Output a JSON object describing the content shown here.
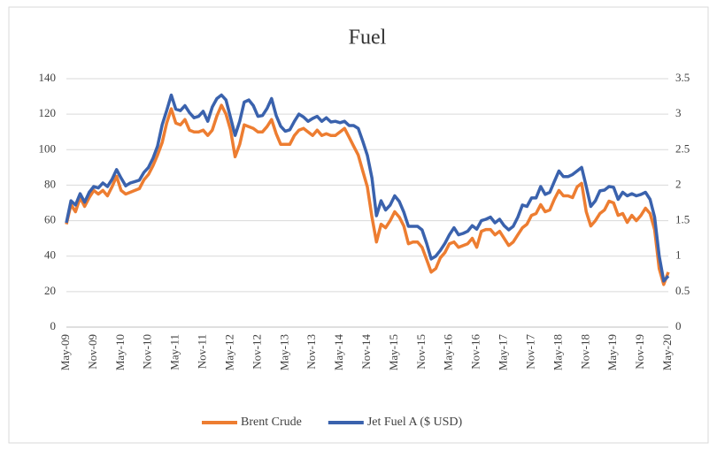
{
  "chart_data": {
    "type": "line",
    "title": "Fuel",
    "categories": [
      "May-09",
      null,
      null,
      null,
      null,
      null,
      "Nov-09",
      null,
      null,
      null,
      null,
      null,
      "May-10",
      null,
      null,
      null,
      null,
      null,
      "Nov-10",
      null,
      null,
      null,
      null,
      null,
      "May-11",
      null,
      null,
      null,
      null,
      null,
      "Nov-11",
      null,
      null,
      null,
      null,
      null,
      "May-12",
      null,
      null,
      null,
      null,
      null,
      "Nov-12",
      null,
      null,
      null,
      null,
      null,
      "May-13",
      null,
      null,
      null,
      null,
      null,
      "Nov-13",
      null,
      null,
      null,
      null,
      null,
      "May-14",
      null,
      null,
      null,
      null,
      null,
      "Nov-14",
      null,
      null,
      null,
      null,
      null,
      "May-15",
      null,
      null,
      null,
      null,
      null,
      "Nov-15",
      null,
      null,
      null,
      null,
      null,
      "May-16",
      null,
      null,
      null,
      null,
      null,
      "Nov-16",
      null,
      null,
      null,
      null,
      null,
      "May-17",
      null,
      null,
      null,
      null,
      null,
      "Nov-17",
      null,
      null,
      null,
      null,
      null,
      "May-18",
      null,
      null,
      null,
      null,
      null,
      "Nov-18",
      null,
      null,
      null,
      null,
      null,
      "May-19",
      null,
      null,
      null,
      null,
      null,
      "Nov-19",
      null,
      null,
      null,
      null,
      null,
      "May-20"
    ],
    "series": [
      {
        "name": "Brent Crude",
        "color": "#ed7d31",
        "values": [
          58,
          69,
          65,
          73,
          68,
          73,
          77,
          75,
          77,
          74,
          79,
          85,
          77,
          75,
          76,
          77,
          78,
          83,
          86,
          91,
          97,
          104,
          115,
          123,
          115,
          114,
          117,
          111,
          110,
          110,
          111,
          108,
          111,
          119,
          125,
          120,
          111,
          96,
          103,
          114,
          113,
          112,
          110,
          110,
          113,
          117,
          109,
          103,
          103,
          103,
          108,
          111,
          112,
          110,
          108,
          111,
          108,
          109,
          108,
          108,
          110,
          112,
          107,
          102,
          97,
          88,
          79,
          62,
          48,
          58,
          56,
          60,
          65,
          62,
          57,
          47,
          48,
          48,
          45,
          38,
          31,
          33,
          39,
          42,
          47,
          48,
          45,
          46,
          47,
          50,
          45,
          54,
          55,
          55,
          52,
          54,
          50,
          46,
          48,
          52,
          56,
          58,
          63,
          64,
          69,
          65,
          66,
          72,
          77,
          74,
          74,
          73,
          79,
          81,
          65,
          57,
          60,
          64,
          66,
          71,
          70,
          63,
          64,
          59,
          63,
          60,
          63,
          67,
          64,
          55,
          33,
          24,
          31
        ]
      },
      {
        "name": "Jet Fuel A ($ USD)",
        "color": "#3a62ad",
        "axis": "y2",
        "values": [
          1.47,
          1.78,
          1.72,
          1.88,
          1.76,
          1.9,
          1.98,
          1.96,
          2.03,
          1.98,
          2.08,
          2.22,
          2.1,
          1.99,
          2.03,
          2.05,
          2.07,
          2.18,
          2.25,
          2.38,
          2.55,
          2.85,
          3.05,
          3.27,
          3.07,
          3.05,
          3.12,
          3.02,
          2.95,
          2.97,
          3.04,
          2.9,
          3.1,
          3.22,
          3.27,
          3.2,
          2.95,
          2.7,
          2.9,
          3.17,
          3.2,
          3.12,
          2.97,
          2.98,
          3.08,
          3.22,
          2.98,
          2.83,
          2.76,
          2.78,
          2.9,
          3.0,
          2.96,
          2.9,
          2.94,
          2.97,
          2.9,
          2.95,
          2.89,
          2.9,
          2.88,
          2.9,
          2.84,
          2.84,
          2.8,
          2.62,
          2.42,
          2.1,
          1.57,
          1.78,
          1.65,
          1.72,
          1.85,
          1.77,
          1.62,
          1.42,
          1.42,
          1.42,
          1.37,
          1.18,
          0.96,
          1.0,
          1.08,
          1.18,
          1.3,
          1.4,
          1.3,
          1.32,
          1.35,
          1.43,
          1.38,
          1.5,
          1.52,
          1.55,
          1.47,
          1.52,
          1.43,
          1.37,
          1.42,
          1.55,
          1.72,
          1.7,
          1.82,
          1.82,
          1.98,
          1.87,
          1.9,
          2.05,
          2.2,
          2.12,
          2.12,
          2.15,
          2.2,
          2.25,
          1.98,
          1.7,
          1.78,
          1.92,
          1.93,
          1.98,
          1.97,
          1.8,
          1.9,
          1.85,
          1.88,
          1.85,
          1.87,
          1.9,
          1.8,
          1.55,
          1.0,
          0.65,
          0.72
        ]
      }
    ],
    "ylim": [
      0,
      140
    ],
    "yticks": [
      0,
      20,
      40,
      60,
      80,
      100,
      120,
      140
    ],
    "y2lim": [
      0,
      3.5
    ],
    "y2ticks": [
      0,
      0.5,
      1,
      1.5,
      2,
      2.5,
      3,
      3.5
    ],
    "grid": true,
    "legend": "bottom"
  }
}
